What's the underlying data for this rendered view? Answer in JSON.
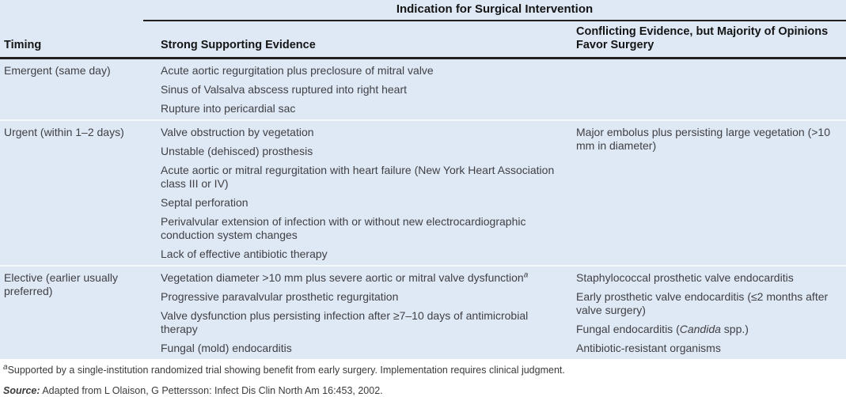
{
  "colors": {
    "table_bg": "#dee9f5",
    "rule": "#231f20",
    "body_text": "#414045",
    "header_text": "#151516",
    "row_separator": "#f7fafd"
  },
  "table": {
    "title": "Indication for Surgical Intervention",
    "columns": {
      "timing": "Timing",
      "strong": "Strong Supporting Evidence",
      "conflicting": "Conflicting Evidence, but Majority of Opinions Favor Surgery"
    },
    "groups": [
      {
        "timing": [
          {
            "text": "Emergent (same day)"
          }
        ],
        "strong": [
          [
            {
              "text": "Acute aortic regurgitation plus preclosure of mitral valve"
            }
          ],
          [
            {
              "text": "Sinus of Valsalva abscess ruptured into right heart"
            }
          ],
          [
            {
              "text": "Rupture into pericardial sac"
            }
          ]
        ],
        "conflicting": []
      },
      {
        "timing": [
          {
            "text": "Urgent (within 1–2 days)"
          }
        ],
        "strong": [
          [
            {
              "text": "Valve obstruction by vegetation"
            }
          ],
          [
            {
              "text": "Unstable (dehisced) prosthesis"
            }
          ],
          [
            {
              "text": "Acute aortic or mitral regurgitation with heart failure (New York Heart Association class III or IV)"
            }
          ],
          [
            {
              "text": "Septal perforation"
            }
          ],
          [
            {
              "text": "Perivalvular extension of infection with or without new electrocardiographic conduction system changes"
            }
          ],
          [
            {
              "text": "Lack of effective antibiotic therapy"
            }
          ]
        ],
        "conflicting": [
          [
            {
              "text": "Major embolus plus persisting large vegetation (>10 mm in diameter)"
            }
          ]
        ]
      },
      {
        "timing": [
          {
            "text": "Elective (earlier usually preferred)"
          }
        ],
        "strong": [
          [
            {
              "text": "Vegetation diameter >10 mm plus severe aortic or mitral valve dysfunction"
            },
            {
              "text": "a",
              "sup": true,
              "italic": true
            }
          ],
          [
            {
              "text": "Progressive paravalvular prosthetic regurgitation"
            }
          ],
          [
            {
              "text": "Valve dysfunction plus persisting infection after ≥7–10 days of antimicrobial therapy"
            }
          ],
          [
            {
              "text": "Fungal (mold) endocarditis"
            }
          ]
        ],
        "conflicting": [
          [
            {
              "text": "Staphylococcal prosthetic valve endocarditis"
            }
          ],
          [
            {
              "text": "Early prosthetic valve endocarditis (≤2 months after valve surgery)"
            }
          ],
          [
            {
              "text": "Fungal endocarditis ("
            },
            {
              "text": "Candida",
              "italic": true
            },
            {
              "text": " spp.)"
            }
          ],
          [
            {
              "text": "Antibiotic-resistant organisms"
            }
          ]
        ]
      }
    ],
    "footnote": [
      {
        "text": "a",
        "sup": true,
        "italic": true
      },
      {
        "text": "Supported by a single-institution randomized trial showing benefit from early surgery. Implementation requires clinical judgment."
      }
    ],
    "source": [
      {
        "text": "Source:",
        "bold": true,
        "italic": true
      },
      {
        "text": " Adapted from L Olaison, G Pettersson: Infect Dis Clin North Am 16:453, 2002."
      }
    ]
  }
}
